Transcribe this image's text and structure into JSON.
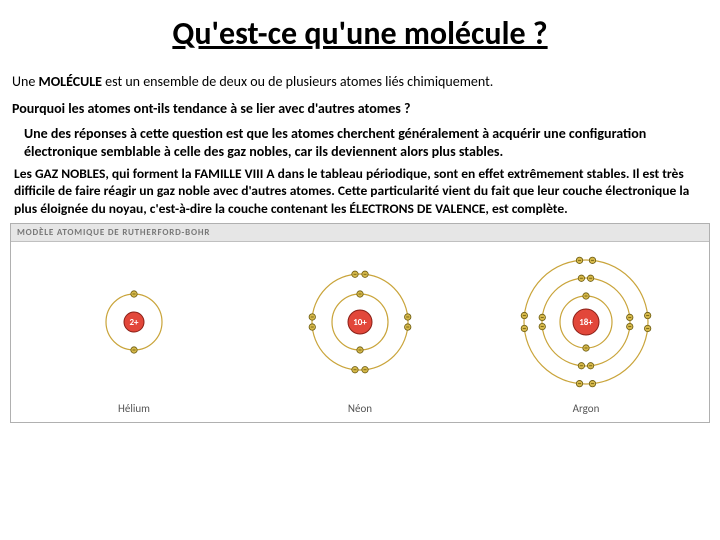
{
  "title": "Qu'est-ce qu'une molécule ?",
  "definition": {
    "lead": "Une ",
    "key": "MOLÉCULE",
    "rest": " est un ensemble de deux ou de plusieurs atomes liés chimiquement."
  },
  "question": "Pourquoi les atomes ont-ils tendance à se lier avec d'autres atomes ?",
  "answer": "Une des réponses à cette question est que les atomes cherchent généralement à acquérir une configuration électronique semblable à celle des gaz nobles, car ils deviennent alors plus stables.",
  "bold_block": "Les GAZ NOBLES, qui forment la FAMILLE VIII A dans le tableau périodique, sont en effet extrêmement stables. Il est très difficile de faire réagir un gaz noble avec d'autres atomes. Cette particularité vient du fait que leur couche électronique la plus éloignée du noyau, c'est-à-dire la couche contenant les ÉLECTRONS DE VALENCE, est complète.",
  "figure": {
    "header": "MODÈLE ATOMIQUE DE RUTHERFORD-BOHR",
    "background_color": "#ffffff",
    "orbit_color": "#c9a43a",
    "electron_fill": "#d6b84a",
    "electron_stroke": "#6a5a10",
    "nucleus_fill": "#e2473a",
    "nucleus_stroke": "#8a1f16",
    "nucleus_text_color": "#ffffff",
    "atoms": [
      {
        "name": "Hélium",
        "nucleus_label": "2+",
        "nucleus_radius": 10,
        "shells": [
          {
            "radius": 28,
            "electrons": 2
          }
        ]
      },
      {
        "name": "Néon",
        "nucleus_label": "10+",
        "nucleus_radius": 12,
        "shells": [
          {
            "radius": 28,
            "electrons": 2
          },
          {
            "radius": 48,
            "electrons": 8
          }
        ]
      },
      {
        "name": "Argon",
        "nucleus_label": "18+",
        "nucleus_radius": 13,
        "shells": [
          {
            "radius": 26,
            "electrons": 2
          },
          {
            "radius": 44,
            "electrons": 8
          },
          {
            "radius": 62,
            "electrons": 8
          }
        ]
      }
    ]
  }
}
